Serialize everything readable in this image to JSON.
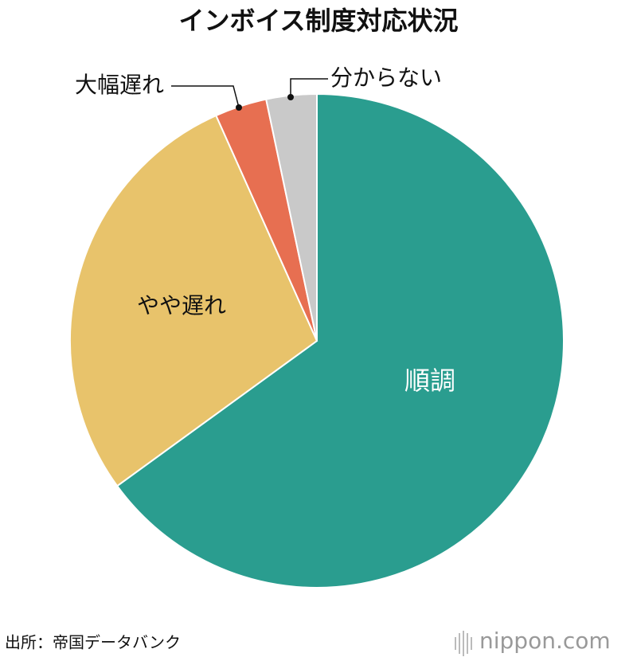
{
  "chart_data": {
    "type": "pie",
    "title": "インボイス制度対応状況",
    "categories": [
      "順調",
      "やや遅れ",
      "大幅遅れ",
      "分からない"
    ],
    "values": [
      65,
      28.3,
      3.4,
      3.3
    ],
    "colors": [
      "#2a9d8f",
      "#e8c36b",
      "#e76f51",
      "#c9c9c9"
    ],
    "source": "出所：帝国データバンク",
    "logo": "nippon.com"
  }
}
